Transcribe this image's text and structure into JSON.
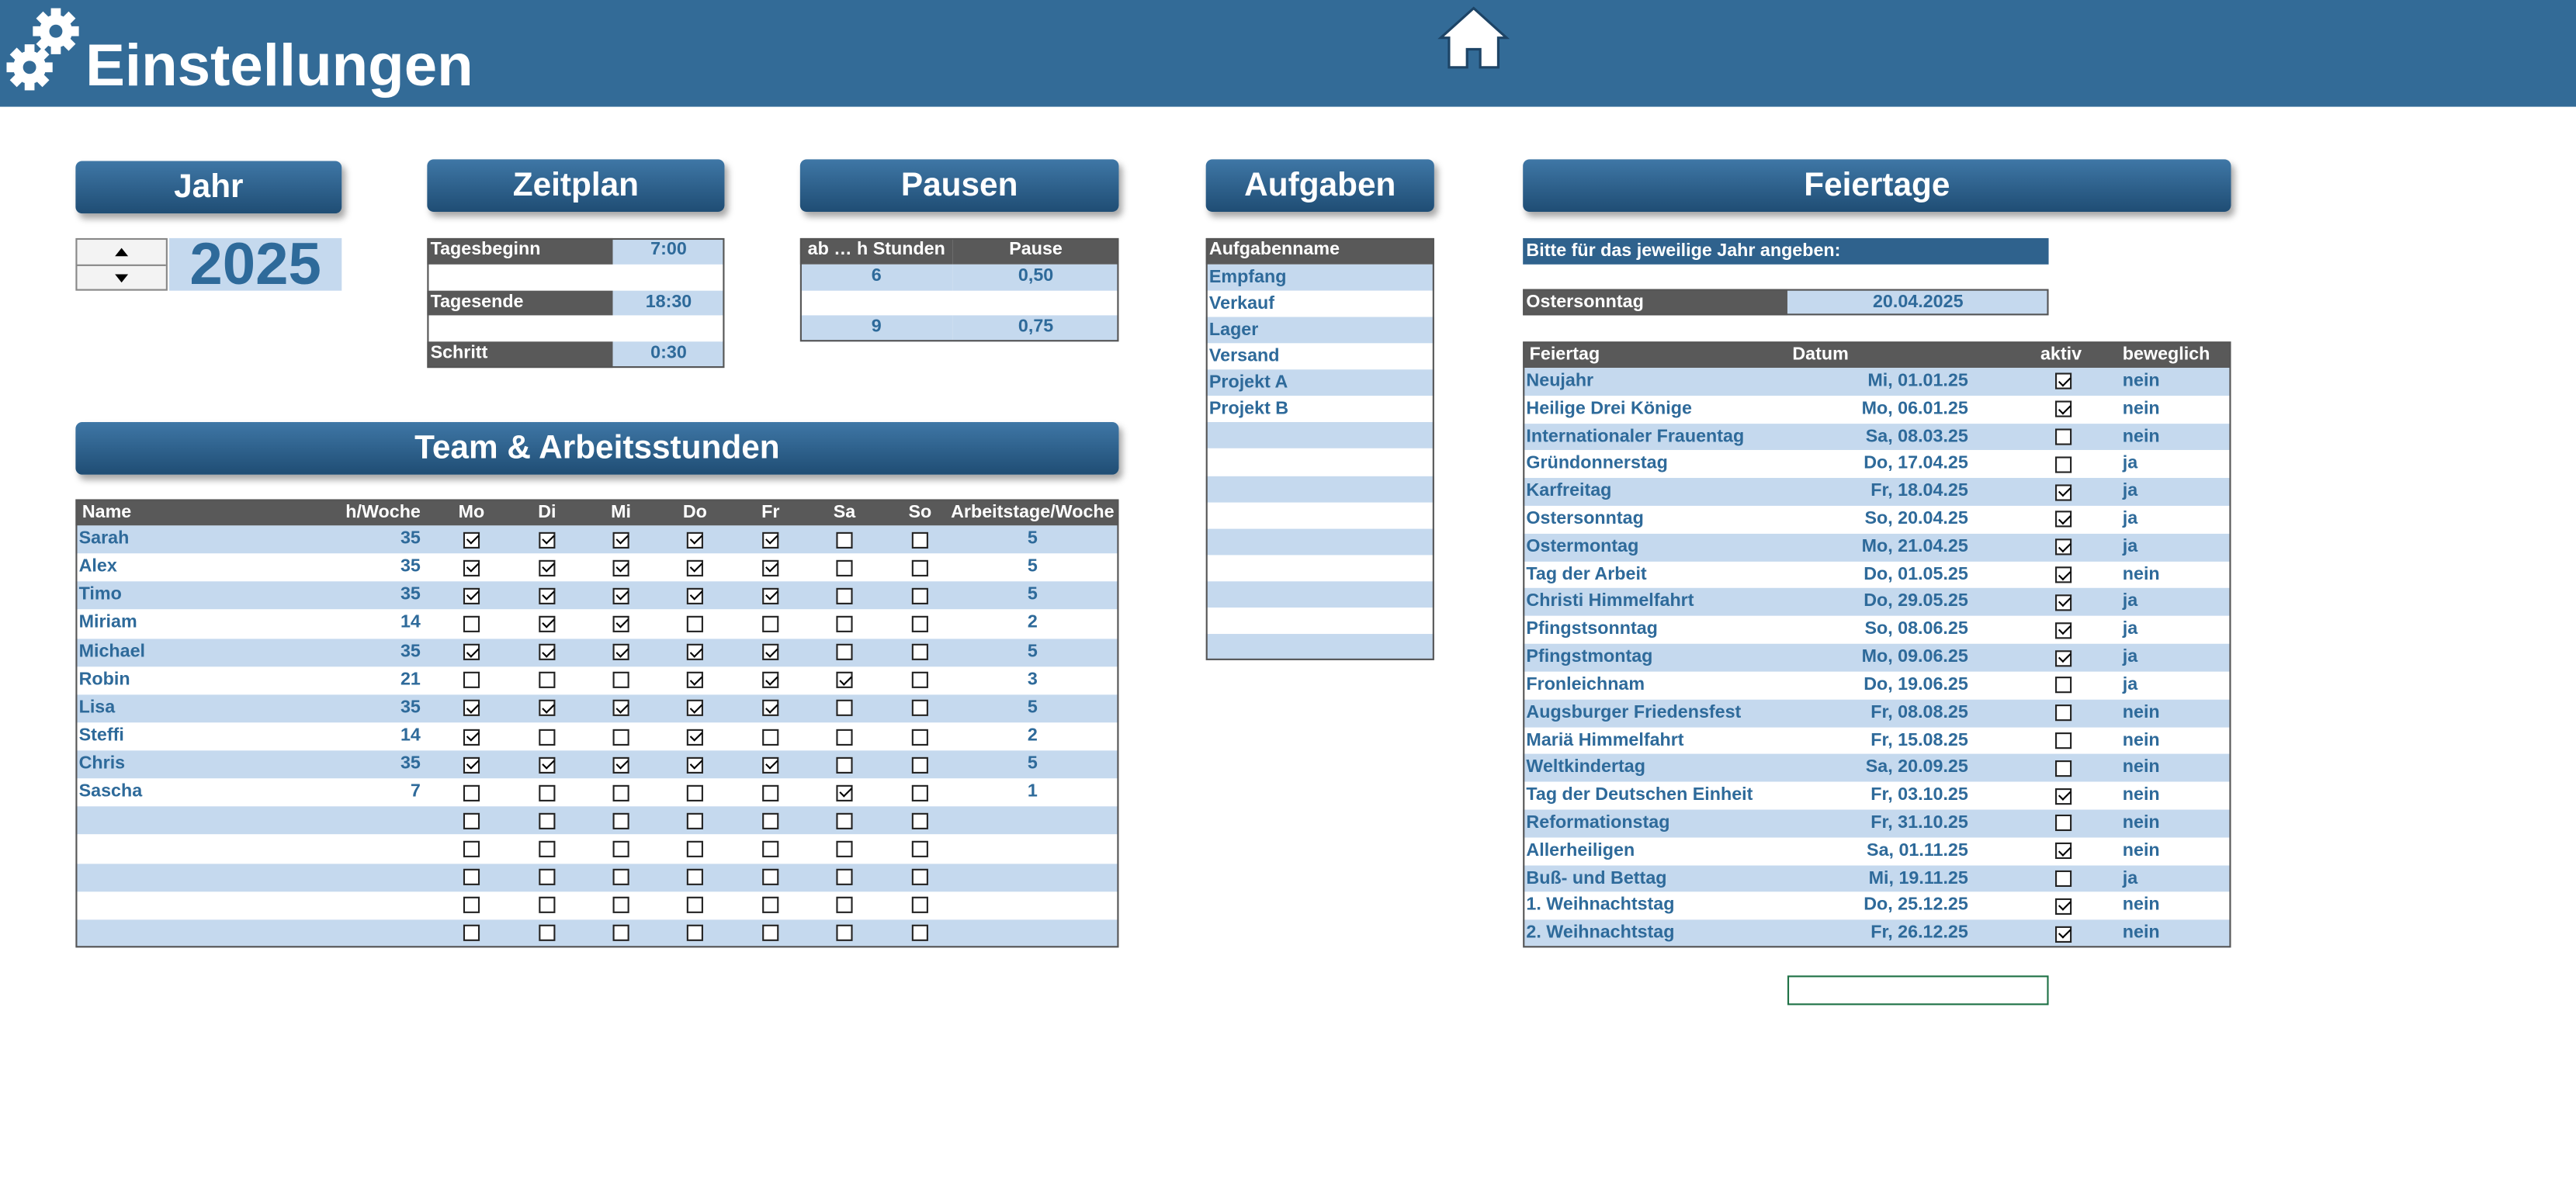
{
  "header": {
    "title": "Einstellungen"
  },
  "jahr": {
    "title": "Jahr",
    "value": "2025"
  },
  "zeitplan": {
    "title": "Zeitplan",
    "rows": [
      [
        "Tagesbeginn",
        "7:00"
      ],
      [
        "Tagesende",
        "18:30"
      ],
      [
        "Schritt",
        "0:30"
      ]
    ]
  },
  "pausen": {
    "title": "Pausen",
    "header": [
      "ab … h Stunden",
      "Pause"
    ],
    "rows": [
      [
        "6",
        "0,50"
      ],
      [
        "9",
        "0,75"
      ]
    ]
  },
  "aufgaben": {
    "title": "Aufgaben",
    "header": "Aufgabenname",
    "items": [
      "Empfang",
      "Verkauf",
      "Lager",
      "Versand",
      "Projekt A",
      "Projekt B"
    ]
  },
  "team": {
    "title": "Team & Arbeitsstunden",
    "header": [
      "Name",
      "h/Woche",
      "Mo",
      "Di",
      "Mi",
      "Do",
      "Fr",
      "Sa",
      "So",
      "Arbeitstage/Woche"
    ],
    "rows": [
      {
        "name": "Sarah",
        "hours": 35,
        "days": [
          true,
          true,
          true,
          true,
          true,
          false,
          false
        ],
        "arbeitstage": 5
      },
      {
        "name": "Alex",
        "hours": 35,
        "days": [
          true,
          true,
          true,
          true,
          true,
          false,
          false
        ],
        "arbeitstage": 5
      },
      {
        "name": "Timo",
        "hours": 35,
        "days": [
          true,
          true,
          true,
          true,
          true,
          false,
          false
        ],
        "arbeitstage": 5
      },
      {
        "name": "Miriam",
        "hours": 14,
        "days": [
          false,
          true,
          true,
          false,
          false,
          false,
          false
        ],
        "arbeitstage": 2
      },
      {
        "name": "Michael",
        "hours": 35,
        "days": [
          true,
          true,
          true,
          true,
          true,
          false,
          false
        ],
        "arbeitstage": 5
      },
      {
        "name": "Robin",
        "hours": 21,
        "days": [
          false,
          false,
          false,
          true,
          true,
          true,
          false
        ],
        "arbeitstage": 3
      },
      {
        "name": "Lisa",
        "hours": 35,
        "days": [
          true,
          true,
          true,
          true,
          true,
          false,
          false
        ],
        "arbeitstage": 5
      },
      {
        "name": "Steffi",
        "hours": 14,
        "days": [
          true,
          false,
          false,
          true,
          false,
          false,
          false
        ],
        "arbeitstage": 2
      },
      {
        "name": "Chris",
        "hours": 35,
        "days": [
          true,
          true,
          true,
          true,
          true,
          false,
          false
        ],
        "arbeitstage": 5
      },
      {
        "name": "Sascha",
        "hours": 7,
        "days": [
          false,
          false,
          false,
          false,
          false,
          true,
          false
        ],
        "arbeitstage": 1
      },
      {
        "days": [
          false,
          false,
          false,
          false,
          false,
          false,
          false
        ]
      },
      {
        "days": [
          false,
          false,
          false,
          false,
          false,
          false,
          false
        ]
      },
      {
        "days": [
          false,
          false,
          false,
          false,
          false,
          false,
          false
        ]
      },
      {
        "days": [
          false,
          false,
          false,
          false,
          false,
          false,
          false
        ]
      },
      {
        "days": [
          false,
          false,
          false,
          false,
          false,
          false,
          false
        ]
      }
    ]
  },
  "feiertage": {
    "title": "Feiertage",
    "note": "Bitte für das jeweilige Jahr angeben:",
    "ostersonntag": {
      "label": "Ostersonntag",
      "date": "20.04.2025"
    },
    "header": [
      "Feiertag",
      "Datum",
      "aktiv",
      "beweglich"
    ],
    "rows": [
      {
        "name": "Neujahr",
        "datum": "Mi, 01.01.25",
        "aktiv": true,
        "beweglich": "nein"
      },
      {
        "name": "Heilige Drei Könige",
        "datum": "Mo, 06.01.25",
        "aktiv": true,
        "beweglich": "nein"
      },
      {
        "name": "Internationaler Frauentag",
        "datum": "Sa, 08.03.25",
        "aktiv": false,
        "beweglich": "nein"
      },
      {
        "name": "Gründonnerstag",
        "datum": "Do, 17.04.25",
        "aktiv": false,
        "beweglich": "ja"
      },
      {
        "name": "Karfreitag",
        "datum": "Fr, 18.04.25",
        "aktiv": true,
        "beweglich": "ja"
      },
      {
        "name": "Ostersonntag",
        "datum": "So, 20.04.25",
        "aktiv": true,
        "beweglich": "ja"
      },
      {
        "name": "Ostermontag",
        "datum": "Mo, 21.04.25",
        "aktiv": true,
        "beweglich": "ja"
      },
      {
        "name": "Tag der Arbeit",
        "datum": "Do, 01.05.25",
        "aktiv": true,
        "beweglich": "nein"
      },
      {
        "name": "Christi Himmelfahrt",
        "datum": "Do, 29.05.25",
        "aktiv": true,
        "beweglich": "ja"
      },
      {
        "name": "Pfingstsonntag",
        "datum": "So, 08.06.25",
        "aktiv": true,
        "beweglich": "ja"
      },
      {
        "name": "Pfingstmontag",
        "datum": "Mo, 09.06.25",
        "aktiv": true,
        "beweglich": "ja"
      },
      {
        "name": "Fronleichnam",
        "datum": "Do, 19.06.25",
        "aktiv": false,
        "beweglich": "ja"
      },
      {
        "name": "Augsburger Friedensfest",
        "datum": "Fr, 08.08.25",
        "aktiv": false,
        "beweglich": "nein"
      },
      {
        "name": "Mariä Himmelfahrt",
        "datum": "Fr, 15.08.25",
        "aktiv": false,
        "beweglich": "nein"
      },
      {
        "name": "Weltkindertag",
        "datum": "Sa, 20.09.25",
        "aktiv": false,
        "beweglich": "nein"
      },
      {
        "name": "Tag der Deutschen Einheit",
        "datum": "Fr, 03.10.25",
        "aktiv": true,
        "beweglich": "nein"
      },
      {
        "name": "Reformationstag",
        "datum": "Fr, 31.10.25",
        "aktiv": false,
        "beweglich": "nein"
      },
      {
        "name": "Allerheiligen",
        "datum": "Sa, 01.11.25",
        "aktiv": true,
        "beweglich": "nein"
      },
      {
        "name": "Buß- und Bettag",
        "datum": "Mi, 19.11.25",
        "aktiv": false,
        "beweglich": "ja"
      },
      {
        "name": "1. Weihnachtstag",
        "datum": "Do, 25.12.25",
        "aktiv": true,
        "beweglich": "nein"
      },
      {
        "name": "2. Weihnachtstag",
        "datum": "Fr, 26.12.25",
        "aktiv": true,
        "beweglich": "nein"
      }
    ]
  }
}
